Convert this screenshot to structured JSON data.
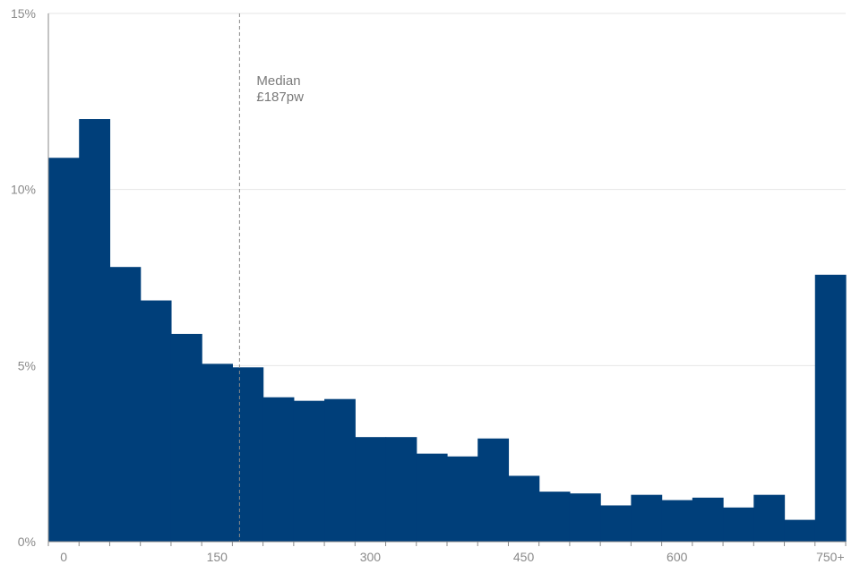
{
  "chart_data": {
    "type": "bar",
    "title": "",
    "xlabel": "",
    "ylabel": "",
    "bin_width": 30,
    "categories": [
      "0",
      "30",
      "60",
      "90",
      "120",
      "150",
      "180",
      "210",
      "240",
      "270",
      "300",
      "330",
      "360",
      "390",
      "420",
      "450",
      "480",
      "510",
      "540",
      "570",
      "600",
      "630",
      "660",
      "690",
      "720",
      "750+"
    ],
    "values": [
      10.9,
      12.0,
      7.8,
      6.85,
      5.9,
      5.05,
      4.95,
      4.1,
      4.0,
      4.05,
      2.97,
      2.97,
      2.5,
      2.42,
      2.93,
      1.87,
      1.42,
      1.37,
      1.03,
      1.33,
      1.18,
      1.25,
      0.97,
      1.33,
      0.62,
      7.58
    ],
    "ylim": [
      0,
      15
    ],
    "yticks": [
      {
        "value": 0,
        "label": "0%"
      },
      {
        "value": 5,
        "label": "5%"
      },
      {
        "value": 10,
        "label": "10%"
      },
      {
        "value": 15,
        "label": "15%"
      }
    ],
    "xticks": [
      {
        "value": 0,
        "label": "0"
      },
      {
        "value": 150,
        "label": "150"
      },
      {
        "value": 300,
        "label": "300"
      },
      {
        "value": 450,
        "label": "450"
      },
      {
        "value": 600,
        "label": "600"
      },
      {
        "value": 750,
        "label": "750+"
      }
    ],
    "median": {
      "value": 187,
      "label_line1": "Median",
      "label_line2": "£187pw"
    },
    "colors": {
      "bar": "#003f7a",
      "grid": "#e6e6e6",
      "axis": "#8a8a8a",
      "median_line": "#8a8a8a"
    }
  }
}
